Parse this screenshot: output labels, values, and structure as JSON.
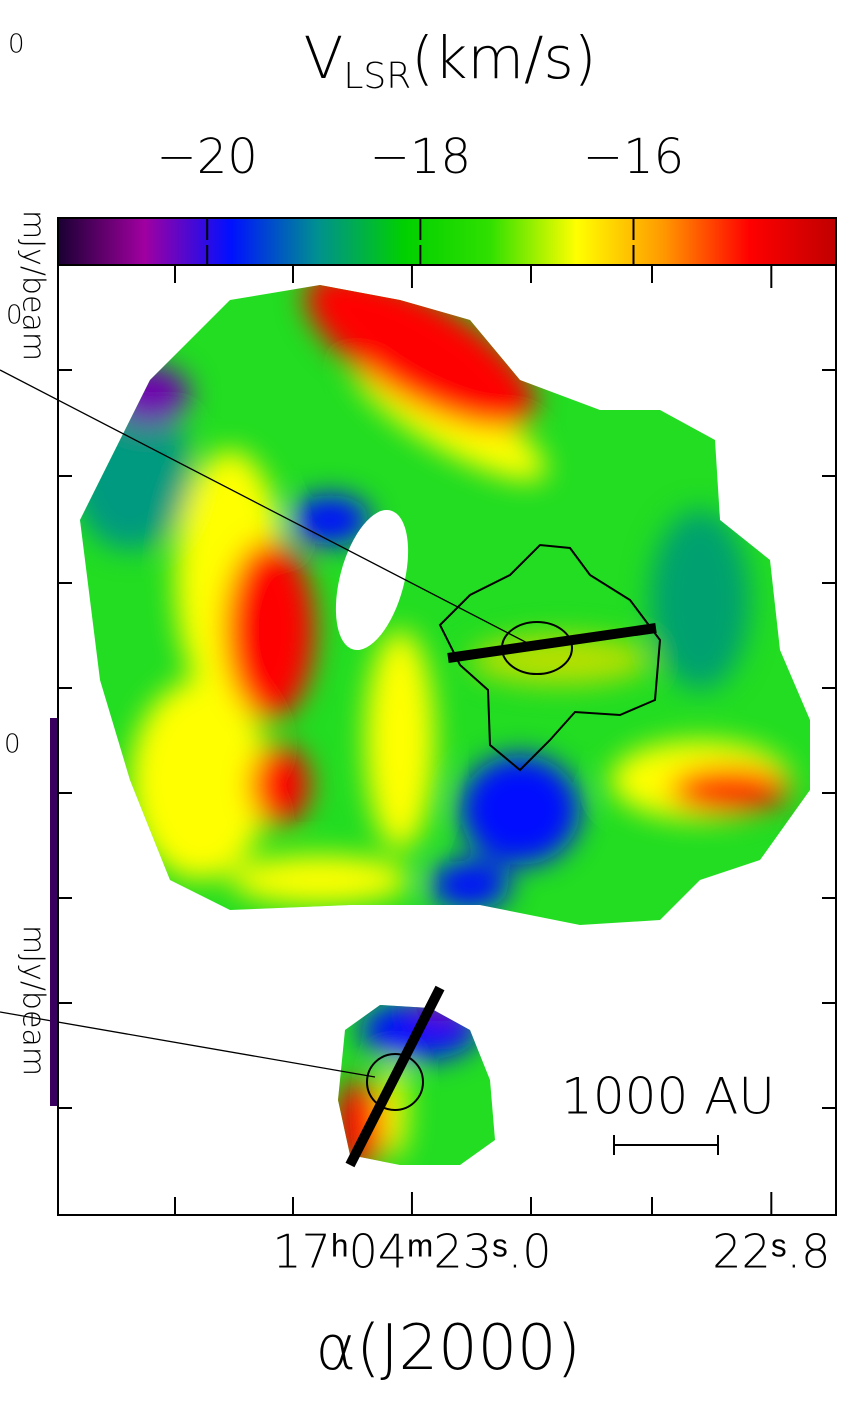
{
  "chart_data": {
    "type": "velocity-map",
    "title": {
      "symbol": "V",
      "subscript": "LSR",
      "unit": "(km/s)"
    },
    "colorbar": {
      "clim": [
        -21.4,
        -14.1
      ],
      "ticks": [
        {
          "value": -20,
          "label": "−20"
        },
        {
          "value": -18,
          "label": "−18"
        },
        {
          "value": -16,
          "label": "−16"
        }
      ],
      "colors": [
        "#1a0033",
        "#a000a0",
        "#0010ff",
        "#009090",
        "#00d000",
        "#30e000",
        "#ffff00",
        "#ff9900",
        "#ff0000",
        "#c00000"
      ]
    },
    "xlabel": "α(J2000)",
    "xlim": [
      23.197,
      22.764
    ],
    "xticks": [
      {
        "value": 23.0,
        "label": "17ʰ04ᵐ23ˢ.0"
      },
      {
        "value": 22.8,
        "label": "22ˢ.8"
      }
    ],
    "scale_bar": "1000 AU",
    "side_labels": [
      "mJy/beam",
      "mJy/beam"
    ],
    "fragments": [
      "0",
      "0",
      "0"
    ]
  }
}
